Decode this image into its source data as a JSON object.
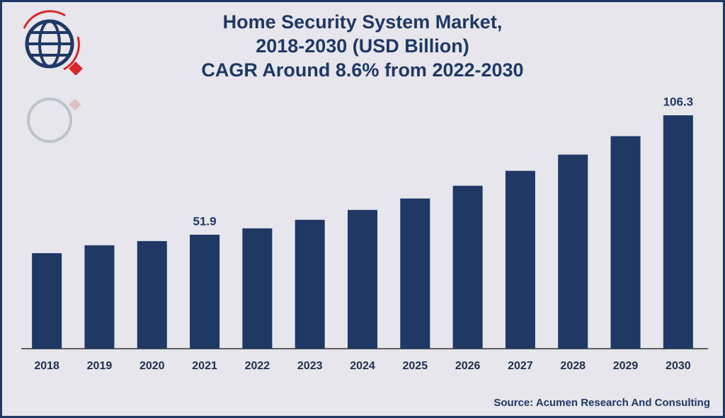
{
  "chart_data": {
    "type": "bar",
    "title": [
      "Home Security System Market,",
      "2018-2030 (USD Billion)",
      "CAGR Around 8.6% from 2022-2030"
    ],
    "categories": [
      "2018",
      "2019",
      "2020",
      "2021",
      "2022",
      "2023",
      "2024",
      "2025",
      "2026",
      "2027",
      "2028",
      "2029",
      "2030"
    ],
    "values": [
      43.5,
      47.1,
      49.0,
      51.9,
      54.8,
      58.7,
      63.2,
      68.4,
      74.2,
      81.0,
      88.4,
      96.8,
      106.3
    ],
    "value_labels": [
      null,
      null,
      null,
      "51.9",
      null,
      null,
      null,
      null,
      null,
      null,
      null,
      null,
      "106.3"
    ],
    "color": "#1f3864",
    "source": "Source: Acumen Research And Consulting"
  }
}
